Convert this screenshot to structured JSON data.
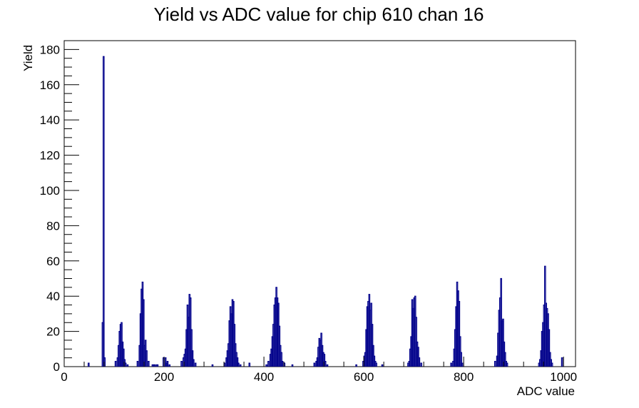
{
  "chart_data": {
    "type": "histogram",
    "title": "Yield vs ADC value for chip 610 chan 16",
    "xlabel": "ADC value",
    "ylabel": "Yield",
    "xlim": [
      0,
      1024
    ],
    "ylim": [
      0,
      185
    ],
    "x_ticks": [
      0,
      200,
      400,
      600,
      800,
      1000
    ],
    "y_ticks": [
      0,
      20,
      40,
      60,
      80,
      100,
      120,
      140,
      160,
      180
    ],
    "x_minor_step": 40,
    "y_minor_step": 5,
    "bin_width": 2,
    "grid": false,
    "line_color": "#00008b",
    "bins": [
      [
        48,
        2
      ],
      [
        76,
        25
      ],
      [
        78,
        176
      ],
      [
        80,
        5
      ],
      [
        102,
        3
      ],
      [
        106,
        5
      ],
      [
        108,
        12
      ],
      [
        110,
        20
      ],
      [
        112,
        24
      ],
      [
        114,
        25
      ],
      [
        116,
        14
      ],
      [
        118,
        10
      ],
      [
        120,
        4
      ],
      [
        122,
        2
      ],
      [
        126,
        1
      ],
      [
        146,
        3
      ],
      [
        150,
        12
      ],
      [
        152,
        30
      ],
      [
        154,
        44
      ],
      [
        156,
        48
      ],
      [
        158,
        38
      ],
      [
        160,
        12
      ],
      [
        162,
        15
      ],
      [
        164,
        9
      ],
      [
        168,
        3
      ],
      [
        176,
        1
      ],
      [
        178,
        1
      ],
      [
        180,
        1
      ],
      [
        184,
        1
      ],
      [
        186,
        1
      ],
      [
        198,
        5
      ],
      [
        202,
        5
      ],
      [
        204,
        2
      ],
      [
        206,
        3
      ],
      [
        210,
        1
      ],
      [
        234,
        3
      ],
      [
        238,
        5
      ],
      [
        240,
        7
      ],
      [
        242,
        10
      ],
      [
        244,
        21
      ],
      [
        246,
        35
      ],
      [
        248,
        28
      ],
      [
        250,
        41
      ],
      [
        252,
        39
      ],
      [
        254,
        21
      ],
      [
        256,
        9
      ],
      [
        258,
        4
      ],
      [
        262,
        2
      ],
      [
        296,
        1
      ],
      [
        320,
        2
      ],
      [
        324,
        5
      ],
      [
        326,
        9
      ],
      [
        328,
        13
      ],
      [
        330,
        26
      ],
      [
        332,
        34
      ],
      [
        334,
        30
      ],
      [
        336,
        38
      ],
      [
        338,
        37
      ],
      [
        340,
        24
      ],
      [
        342,
        13
      ],
      [
        344,
        8
      ],
      [
        346,
        5
      ],
      [
        348,
        2
      ],
      [
        352,
        1
      ],
      [
        370,
        2
      ],
      [
        404,
        1
      ],
      [
        408,
        3
      ],
      [
        412,
        7
      ],
      [
        414,
        10
      ],
      [
        416,
        17
      ],
      [
        418,
        24
      ],
      [
        420,
        35
      ],
      [
        422,
        39
      ],
      [
        424,
        45
      ],
      [
        426,
        39
      ],
      [
        428,
        36
      ],
      [
        430,
        23
      ],
      [
        432,
        12
      ],
      [
        434,
        8
      ],
      [
        436,
        3
      ],
      [
        440,
        2
      ],
      [
        456,
        1
      ],
      [
        500,
        2
      ],
      [
        504,
        3
      ],
      [
        506,
        5
      ],
      [
        508,
        11
      ],
      [
        510,
        16
      ],
      [
        512,
        15
      ],
      [
        514,
        19
      ],
      [
        516,
        12
      ],
      [
        518,
        8
      ],
      [
        520,
        7
      ],
      [
        522,
        3
      ],
      [
        526,
        1
      ],
      [
        584,
        1
      ],
      [
        598,
        3
      ],
      [
        600,
        6
      ],
      [
        602,
        8
      ],
      [
        604,
        21
      ],
      [
        606,
        34
      ],
      [
        608,
        37
      ],
      [
        610,
        41
      ],
      [
        612,
        32
      ],
      [
        614,
        36
      ],
      [
        616,
        24
      ],
      [
        618,
        12
      ],
      [
        620,
        6
      ],
      [
        622,
        3
      ],
      [
        624,
        2
      ],
      [
        636,
        1
      ],
      [
        688,
        2
      ],
      [
        690,
        3
      ],
      [
        692,
        10
      ],
      [
        694,
        17
      ],
      [
        696,
        38
      ],
      [
        698,
        33
      ],
      [
        700,
        39
      ],
      [
        702,
        40
      ],
      [
        704,
        28
      ],
      [
        706,
        14
      ],
      [
        708,
        11
      ],
      [
        710,
        5
      ],
      [
        714,
        2
      ],
      [
        774,
        2
      ],
      [
        778,
        3
      ],
      [
        780,
        10
      ],
      [
        782,
        21
      ],
      [
        784,
        34
      ],
      [
        786,
        48
      ],
      [
        788,
        43
      ],
      [
        790,
        37
      ],
      [
        792,
        17
      ],
      [
        794,
        8
      ],
      [
        796,
        2
      ],
      [
        862,
        3
      ],
      [
        866,
        6
      ],
      [
        868,
        19
      ],
      [
        870,
        32
      ],
      [
        872,
        39
      ],
      [
        874,
        50
      ],
      [
        876,
        26
      ],
      [
        878,
        27
      ],
      [
        880,
        14
      ],
      [
        882,
        8
      ],
      [
        884,
        3
      ],
      [
        886,
        2
      ],
      [
        950,
        2
      ],
      [
        952,
        4
      ],
      [
        954,
        9
      ],
      [
        956,
        20
      ],
      [
        958,
        25
      ],
      [
        960,
        35
      ],
      [
        962,
        57
      ],
      [
        964,
        36
      ],
      [
        966,
        33
      ],
      [
        968,
        30
      ],
      [
        970,
        21
      ],
      [
        972,
        8
      ],
      [
        974,
        4
      ],
      [
        976,
        2
      ],
      [
        996,
        5
      ]
    ]
  }
}
